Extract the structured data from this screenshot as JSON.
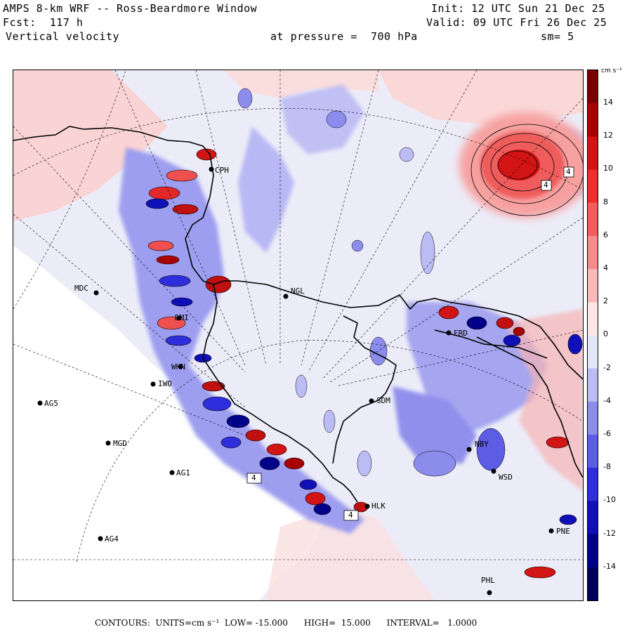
{
  "header": {
    "title": "AMPS 8-km WRF -- Ross-Beardmore Window",
    "forecast": "Fcst:  117 h",
    "field": "Vertical velocity",
    "pressure": "at pressure =  700 hPa",
    "init": "Init: 12 UTC Sun 21 Dec 25",
    "valid": "Valid: 09 UTC Fri 26 Dec 25",
    "smoothing": "sm= 5"
  },
  "colorbar": {
    "units": "cm s⁻¹",
    "ticks": [
      "14",
      "12",
      "10",
      "8",
      "6",
      "4",
      "2",
      "0",
      "-2",
      "-4",
      "-6",
      "-8",
      "-10",
      "-12",
      "-14"
    ],
    "colors": [
      "#7a0000",
      "#a80000",
      "#d21414",
      "#ee2e2e",
      "#f45c5c",
      "#f78a8a",
      "#fab8b8",
      "#fde6e6",
      "#e6e6fa",
      "#bcbcf4",
      "#8c8ced",
      "#5c5ce4",
      "#2e2edc",
      "#1010b8",
      "#000088",
      "#000060"
    ]
  },
  "stations": [
    {
      "label": "CPH"
    },
    {
      "label": "MDC"
    },
    {
      "label": "NGL"
    },
    {
      "label": "DMI"
    },
    {
      "label": "FRD"
    },
    {
      "label": "WHN"
    },
    {
      "label": "IWO"
    },
    {
      "label": "AG5"
    },
    {
      "label": "SDM"
    },
    {
      "label": "MGD"
    },
    {
      "label": "NBY"
    },
    {
      "label": "AG1"
    },
    {
      "label": "WSD"
    },
    {
      "label": "HLK"
    },
    {
      "label": "AG4"
    },
    {
      "label": "PNE"
    },
    {
      "label": "PHL"
    }
  ],
  "contour_labels": [
    "4",
    "4",
    "4",
    "4"
  ],
  "footer": "CONTOURS:  UNITS=cm s⁻¹  LOW= -15.000      HIGH=  15.000      INTERVAL=   1.0000"
}
